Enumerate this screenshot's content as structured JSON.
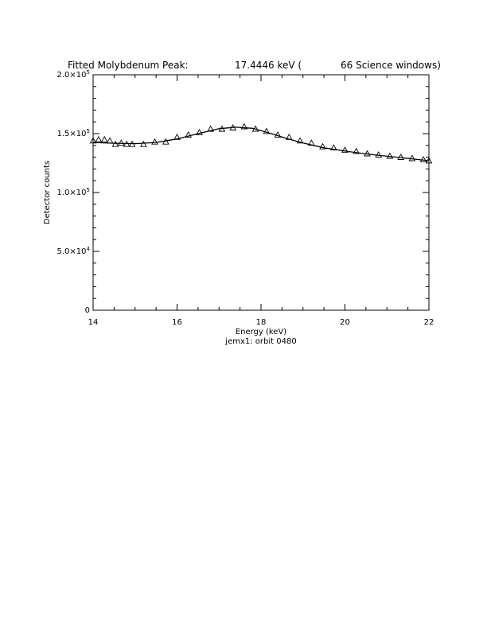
{
  "chart_data": {
    "type": "scatter",
    "title_parts": [
      "Fitted Molybdenum Peak:",
      "17.4446 keV (",
      "66 Science windows)"
    ],
    "xlabel": "Energy (keV)",
    "subtitle": "jemx1: orbit 0480",
    "ylabel": "Detector counts",
    "xlim": [
      14,
      22
    ],
    "ylim": [
      0,
      200000
    ],
    "x_ticks": [
      {
        "value": 14,
        "label": "14"
      },
      {
        "value": 16,
        "label": "16"
      },
      {
        "value": 18,
        "label": "18"
      },
      {
        "value": 20,
        "label": "20"
      },
      {
        "value": 22,
        "label": "22"
      }
    ],
    "y_ticks": [
      {
        "value": 0,
        "mantissa": "0",
        "exp": ""
      },
      {
        "value": 50000,
        "mantissa": "5.0×10",
        "exp": "4"
      },
      {
        "value": 100000,
        "mantissa": "1.0×10",
        "exp": "5"
      },
      {
        "value": 150000,
        "mantissa": "1.5×10",
        "exp": "5"
      },
      {
        "value": 200000,
        "mantissa": "2.0×10",
        "exp": "5"
      }
    ],
    "grid": false,
    "series": [
      {
        "kind": "points",
        "marker": "triangle",
        "x": [
          14.0,
          14.13,
          14.27,
          14.4,
          14.53,
          14.67,
          14.8,
          14.93,
          15.2,
          15.47,
          15.73,
          16.0,
          16.27,
          16.53,
          16.8,
          17.07,
          17.33,
          17.6,
          17.87,
          18.13,
          18.4,
          18.67,
          18.93,
          19.2,
          19.47,
          19.73,
          20.0,
          20.27,
          20.53,
          20.8,
          21.07,
          21.33,
          21.6,
          21.87,
          22.0
        ],
        "y": [
          144000,
          145000,
          145000,
          144000,
          141000,
          142000,
          141000,
          141000,
          141000,
          143000,
          143000,
          147000,
          149000,
          151000,
          154000,
          154000,
          155000,
          156000,
          154000,
          152000,
          149000,
          147000,
          144000,
          142000,
          139000,
          138000,
          136000,
          135000,
          133000,
          132000,
          131000,
          130000,
          129000,
          128000,
          127000
        ]
      },
      {
        "kind": "line",
        "x": [
          14.0,
          14.5,
          15.0,
          15.5,
          16.0,
          16.5,
          17.0,
          17.4,
          17.8,
          18.2,
          18.6,
          19.0,
          19.5,
          20.0,
          20.5,
          21.0,
          21.5,
          22.0
        ],
        "y": [
          142500,
          141800,
          141500,
          142500,
          145500,
          150000,
          154200,
          155500,
          154500,
          150500,
          146000,
          142000,
          138000,
          135200,
          132800,
          130800,
          129000,
          127000
        ]
      }
    ]
  }
}
